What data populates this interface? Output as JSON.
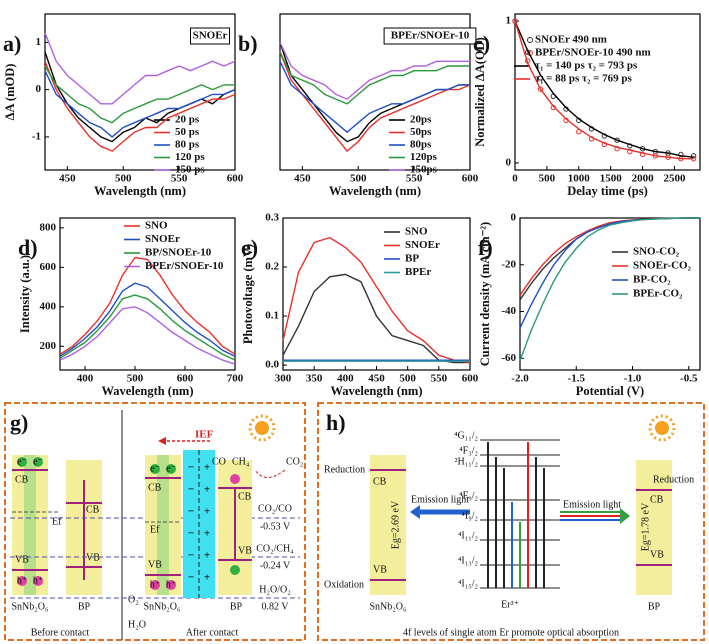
{
  "chart_data": [
    {
      "type": "line",
      "panel_label": "a)",
      "inset_label": "SNOEr",
      "xlabel": "Wavelength (nm)",
      "ylabel": "ΔA (mOD)",
      "x": [
        430,
        440,
        450,
        460,
        470,
        480,
        490,
        500,
        510,
        520,
        530,
        540,
        550,
        560,
        570,
        580,
        590,
        600
      ],
      "xlim": [
        430,
        600
      ],
      "ylim": [
        -1.7,
        1.6
      ],
      "xticks": [
        450,
        500,
        550,
        600
      ],
      "yticks": [
        -1,
        0,
        1
      ],
      "series": [
        {
          "name": "20 ps",
          "color": "#000000",
          "values": [
            0.8,
            0.1,
            -0.3,
            -0.6,
            -0.8,
            -1.0,
            -1.1,
            -0.9,
            -0.8,
            -0.6,
            -0.7,
            -0.5,
            -0.4,
            -0.3,
            -0.2,
            -0.3,
            -0.1,
            0.0
          ]
        },
        {
          "name": "50 ps",
          "color": "#e8302a",
          "values": [
            0.6,
            0.0,
            -0.4,
            -0.7,
            -1.0,
            -1.2,
            -1.3,
            -1.1,
            -0.9,
            -0.8,
            -0.8,
            -0.6,
            -0.5,
            -0.4,
            -0.3,
            -0.2,
            -0.2,
            -0.1
          ]
        },
        {
          "name": "80 ps",
          "color": "#2050c8",
          "values": [
            0.4,
            -0.1,
            -0.3,
            -0.5,
            -0.7,
            -0.8,
            -1.0,
            -0.8,
            -0.7,
            -0.6,
            -0.5,
            -0.4,
            -0.4,
            -0.3,
            -0.2,
            -0.1,
            -0.1,
            0.0
          ]
        },
        {
          "name": "120 ps",
          "color": "#2a9a3a",
          "values": [
            0.5,
            0.1,
            -0.1,
            -0.3,
            -0.4,
            -0.6,
            -0.7,
            -0.5,
            -0.4,
            -0.3,
            -0.2,
            -0.2,
            -0.1,
            0.0,
            0.1,
            0.0,
            0.1,
            0.1
          ]
        },
        {
          "name": "150 ps",
          "color": "#b060e0",
          "values": [
            1.2,
            0.6,
            0.3,
            0.1,
            -0.1,
            -0.3,
            -0.3,
            -0.1,
            0.1,
            0.3,
            0.3,
            0.4,
            0.5,
            0.4,
            0.5,
            0.6,
            0.5,
            0.6
          ]
        }
      ]
    },
    {
      "type": "line",
      "panel_label": "b)",
      "inset_label": "BPEr/SNOEr-10",
      "xlabel": "Wavelength (nm)",
      "x": [
        430,
        440,
        450,
        460,
        470,
        480,
        490,
        500,
        510,
        520,
        530,
        540,
        550,
        560,
        570,
        580,
        590,
        600
      ],
      "xlim": [
        430,
        600
      ],
      "ylim": [
        -1.7,
        1.6
      ],
      "xticks": [
        450,
        500,
        550,
        600
      ],
      "yticks": [],
      "series": [
        {
          "name": "20ps",
          "color": "#000000",
          "values": [
            1.0,
            0.3,
            0.0,
            -0.3,
            -0.6,
            -0.9,
            -1.1,
            -1.0,
            -0.7,
            -0.5,
            -0.4,
            -0.3,
            -0.2,
            -0.1,
            0.0,
            0.0,
            0.1,
            0.1
          ]
        },
        {
          "name": "50ps",
          "color": "#e8302a",
          "values": [
            0.8,
            0.2,
            -0.1,
            -0.4,
            -0.7,
            -1.0,
            -1.3,
            -1.1,
            -0.8,
            -0.6,
            -0.5,
            -0.4,
            -0.3,
            -0.2,
            -0.1,
            0.0,
            0.0,
            0.1
          ]
        },
        {
          "name": "80ps",
          "color": "#2050c8",
          "values": [
            0.6,
            0.1,
            -0.1,
            -0.3,
            -0.5,
            -0.7,
            -0.9,
            -0.7,
            -0.5,
            -0.4,
            -0.3,
            -0.3,
            -0.2,
            -0.1,
            0.0,
            0.0,
            0.1,
            0.1
          ]
        },
        {
          "name": "120ps",
          "color": "#2a9a3a",
          "values": [
            0.8,
            0.3,
            0.2,
            0.1,
            -0.1,
            -0.2,
            -0.3,
            -0.1,
            0.1,
            0.2,
            0.3,
            0.3,
            0.4,
            0.4,
            0.4,
            0.5,
            0.5,
            0.5
          ]
        },
        {
          "name": "150ps",
          "color": "#b060e0",
          "values": [
            1.0,
            0.5,
            0.3,
            0.2,
            0.1,
            -0.1,
            -0.2,
            0.0,
            0.2,
            0.3,
            0.4,
            0.4,
            0.5,
            0.5,
            0.6,
            0.6,
            0.6,
            0.6
          ]
        }
      ]
    },
    {
      "type": "scatter",
      "panel_label": "c)",
      "xlabel": "Delay time (ps)",
      "ylabel": "Normalized ΔA(OD)",
      "x": [
        0,
        200,
        400,
        600,
        800,
        1000,
        1200,
        1400,
        1600,
        1800,
        2000,
        2200,
        2400,
        2600,
        2800
      ],
      "xlim": [
        0,
        2900
      ],
      "ylim": [
        -0.05,
        1.05
      ],
      "xticks": [
        0,
        500,
        1000,
        1500,
        2000,
        2500
      ],
      "yticks": [
        0,
        1
      ],
      "series": [
        {
          "name": "SNOEr 490 nm",
          "color": "#333333",
          "mode": "markers",
          "values": [
            1.0,
            0.78,
            0.6,
            0.47,
            0.38,
            0.3,
            0.24,
            0.19,
            0.16,
            0.12,
            0.1,
            0.08,
            0.07,
            0.06,
            0.05
          ]
        },
        {
          "name": "BPEr/SNOEr-10 490 nm",
          "color": "#e8302a",
          "mode": "markers",
          "values": [
            1.0,
            0.72,
            0.52,
            0.39,
            0.3,
            0.22,
            0.17,
            0.13,
            0.1,
            0.08,
            0.06,
            0.05,
            0.04,
            0.03,
            0.03
          ]
        },
        {
          "name": "τ₁ = 140 ps τ₂ = 793 ps",
          "color": "#000000",
          "mode": "line",
          "values": [
            1.0,
            0.79,
            0.62,
            0.49,
            0.39,
            0.31,
            0.25,
            0.2,
            0.16,
            0.13,
            0.1,
            0.08,
            0.07,
            0.05,
            0.04
          ]
        },
        {
          "name": "τ₁ = 88 ps  τ₂ = 769 ps",
          "color": "#e8302a",
          "mode": "line",
          "values": [
            1.0,
            0.7,
            0.52,
            0.4,
            0.31,
            0.24,
            0.18,
            0.14,
            0.11,
            0.09,
            0.07,
            0.05,
            0.04,
            0.03,
            0.03
          ]
        }
      ]
    },
    {
      "type": "line",
      "panel_label": "d)",
      "xlabel": "Wavelength (nm)",
      "ylabel": "Intensity (a.u.)",
      "x": [
        350,
        375,
        400,
        425,
        450,
        475,
        500,
        525,
        550,
        575,
        600,
        625,
        650,
        675,
        700
      ],
      "xlim": [
        350,
        700
      ],
      "ylim": [
        80,
        850
      ],
      "xticks": [
        400,
        500,
        600,
        700
      ],
      "yticks": [
        200,
        400,
        600,
        800
      ],
      "series": [
        {
          "name": "SNO",
          "color": "#e8302a",
          "values": [
            160,
            200,
            260,
            330,
            420,
            560,
            650,
            640,
            560,
            460,
            380,
            320,
            270,
            200,
            160
          ]
        },
        {
          "name": "SNOEr",
          "color": "#2050c8",
          "values": [
            150,
            190,
            240,
            300,
            380,
            480,
            520,
            500,
            440,
            380,
            320,
            270,
            230,
            180,
            150
          ]
        },
        {
          "name": "BP/SNOEr-10",
          "color": "#2a9a3a",
          "values": [
            140,
            180,
            220,
            280,
            350,
            440,
            460,
            440,
            390,
            330,
            280,
            240,
            200,
            160,
            130
          ]
        },
        {
          "name": "BPEr/SNOEr-10",
          "color": "#b060e0",
          "values": [
            130,
            160,
            200,
            250,
            320,
            390,
            400,
            370,
            320,
            270,
            230,
            190,
            160,
            130,
            110
          ]
        }
      ]
    },
    {
      "type": "line",
      "panel_label": "e)",
      "xlabel": "Wavelength (nm)",
      "ylabel": "Photovoltage (mV)",
      "x": [
        300,
        325,
        350,
        375,
        400,
        425,
        450,
        475,
        500,
        525,
        550,
        575,
        600
      ],
      "xlim": [
        300,
        600
      ],
      "ylim": [
        -0.01,
        0.3
      ],
      "xticks": [
        300,
        350,
        400,
        450,
        500,
        550,
        600
      ],
      "yticks": [
        {
          "value": 0,
          "label": "0.0"
        },
        0.1,
        0.2,
        0.3
      ],
      "series": [
        {
          "name": "SNO",
          "color": "#333333",
          "values": [
            0.02,
            0.08,
            0.15,
            0.18,
            0.185,
            0.17,
            0.1,
            0.06,
            0.05,
            0.04,
            0.01,
            0.005,
            0.005
          ]
        },
        {
          "name": "SNOEr",
          "color": "#e8302a",
          "values": [
            0.05,
            0.19,
            0.25,
            0.26,
            0.24,
            0.21,
            0.16,
            0.11,
            0.07,
            0.05,
            0.02,
            0.01,
            0.005
          ]
        },
        {
          "name": "BP",
          "color": "#2050c8",
          "values": [
            0.01,
            0.01,
            0.01,
            0.01,
            0.01,
            0.01,
            0.01,
            0.01,
            0.01,
            0.01,
            0.01,
            0.01,
            0.01
          ]
        },
        {
          "name": "BPEr",
          "color": "#2a9a9a",
          "values": [
            0.008,
            0.008,
            0.008,
            0.008,
            0.008,
            0.008,
            0.008,
            0.008,
            0.008,
            0.008,
            0.008,
            0.008,
            0.008
          ]
        }
      ]
    },
    {
      "type": "line",
      "panel_label": "f)",
      "xlabel": "Potential (V)",
      "ylabel": "Current density (mA cm⁻²)",
      "x": [
        -2.0,
        -1.9,
        -1.8,
        -1.7,
        -1.6,
        -1.5,
        -1.4,
        -1.3,
        -1.2,
        -1.1,
        -1.0,
        -0.9,
        -0.8,
        -0.7,
        -0.6,
        -0.5,
        -0.4
      ],
      "xlim": [
        -2.0,
        -0.4
      ],
      "ylim": [
        -65,
        0
      ],
      "xticks": [
        {
          "value": -2,
          "label": "-2.0"
        },
        -1.5,
        {
          "value": -1,
          "label": "-1.0"
        },
        -0.5
      ],
      "yticks": [
        -60,
        -40,
        -20,
        0
      ],
      "series": [
        {
          "name": "SNO-CO₂",
          "color": "#333333",
          "values": [
            -35,
            -28,
            -22,
            -17,
            -13,
            -9,
            -6,
            -4,
            -2.5,
            -1.5,
            -1,
            -0.6,
            -0.4,
            -0.2,
            -0.1,
            0,
            0
          ]
        },
        {
          "name": "SNOEr-CO₂",
          "color": "#e8302a",
          "values": [
            -33,
            -26,
            -20,
            -15,
            -11,
            -8,
            -5.5,
            -3.5,
            -2,
            -1.3,
            -0.8,
            -0.5,
            -0.3,
            -0.2,
            -0.1,
            0,
            0
          ]
        },
        {
          "name": "BP-CO₂",
          "color": "#2050c8",
          "values": [
            -47,
            -37,
            -28,
            -20,
            -14,
            -9,
            -6,
            -4,
            -2.5,
            -1.5,
            -1,
            -0.6,
            -0.4,
            -0.2,
            -0.1,
            0,
            0
          ]
        },
        {
          "name": "BPEr-CO₂",
          "color": "#2a9a7a",
          "values": [
            -61,
            -48,
            -37,
            -27,
            -19,
            -13,
            -8,
            -5,
            -3,
            -2,
            -1.2,
            -0.7,
            -0.4,
            -0.2,
            -0.1,
            0,
            0
          ]
        }
      ]
    }
  ],
  "diagrams": {
    "g": {
      "label": "g)",
      "ief": "IEF",
      "co": "CO",
      "ch4": "CH₄",
      "co2": "CO₂",
      "cb": "CB",
      "vb": "VB",
      "ef": "Ef",
      "electron": "e⁻",
      "hole": "h⁺",
      "plus": "+",
      "minus": "−",
      "levels": [
        "CO₂/CO",
        "-0.53 V",
        "CO₂/CH₄",
        "-0.24 V",
        "H₂O/O₂",
        "0.82 V"
      ],
      "o2": "O₂",
      "h2o": "H₂O",
      "sn": "SnNb₂O₆",
      "bp": "BP",
      "before": "Before contact",
      "after": "After contact"
    },
    "h": {
      "label": "h)",
      "reduction": "Reduction",
      "oxidation": "Oxidation",
      "eg1": "Eg=2.69 eV",
      "eg2": "Eg=1.78 eV",
      "emission": "Emission light",
      "er": "Er³⁺",
      "sn": "SnNb₂O₆",
      "bp": "BP",
      "levels": [
        "⁴G₁₁/₂",
        "⁴F₃/₂",
        "²H₁₁/₂",
        "⁴F₉/₂",
        "⁴I₉/₂",
        "⁴I₁₁/₂",
        "⁴I₁₃/₂",
        "⁴I₁₅/₂"
      ],
      "caption": "4f levels of single atom Er promote optical absorption"
    }
  }
}
